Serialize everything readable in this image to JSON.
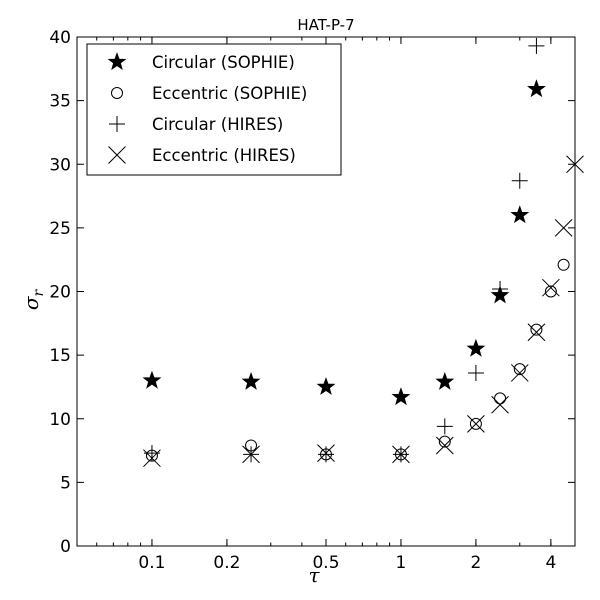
{
  "chart_data": {
    "type": "scatter",
    "title": "HAT-P-7",
    "xlabel": "τ",
    "ylabel_base": "σ",
    "ylabel_sub": "r",
    "x_scale": "log",
    "xlim": [
      0.05,
      5.0
    ],
    "ylim": [
      0,
      40
    ],
    "x_ticks": [
      0.1,
      0.2,
      0.5,
      1,
      2,
      4
    ],
    "x_tick_labels": [
      "0.1",
      "0.2",
      "0.5",
      "1",
      "2",
      "4"
    ],
    "y_ticks": [
      0,
      5,
      10,
      15,
      20,
      25,
      30,
      35,
      40
    ],
    "y_tick_labels": [
      "0",
      "5",
      "10",
      "15",
      "20",
      "25",
      "30",
      "35",
      "40"
    ],
    "legend_position": "upper-left",
    "grid": false,
    "series": [
      {
        "name": "Circular (SOPHIE)",
        "marker": "star",
        "points": [
          [
            0.1,
            13.0
          ],
          [
            0.25,
            12.9
          ],
          [
            0.5,
            12.5
          ],
          [
            1.0,
            11.7
          ],
          [
            1.5,
            12.9
          ],
          [
            2.0,
            15.5
          ],
          [
            2.5,
            19.7
          ],
          [
            3.0,
            26.0
          ],
          [
            3.5,
            35.9
          ]
        ]
      },
      {
        "name": "Eccentric (SOPHIE)",
        "marker": "circle",
        "points": [
          [
            0.1,
            7.1
          ],
          [
            0.25,
            7.9
          ],
          [
            0.5,
            7.2
          ],
          [
            1.0,
            7.2
          ],
          [
            1.5,
            8.2
          ],
          [
            2.0,
            9.6
          ],
          [
            2.5,
            11.6
          ],
          [
            3.0,
            13.9
          ],
          [
            3.5,
            17.0
          ],
          [
            4.0,
            20.0
          ],
          [
            4.5,
            22.1
          ]
        ]
      },
      {
        "name": "Circular (HIRES)",
        "marker": "plus",
        "points": [
          [
            0.1,
            7.3
          ],
          [
            0.25,
            7.2
          ],
          [
            0.5,
            7.2
          ],
          [
            1.0,
            7.2
          ],
          [
            1.5,
            9.4
          ],
          [
            2.0,
            13.6
          ],
          [
            2.5,
            20.2
          ],
          [
            3.0,
            28.7
          ],
          [
            3.5,
            39.3
          ]
        ]
      },
      {
        "name": "Eccentric (HIRES)",
        "marker": "x",
        "points": [
          [
            0.1,
            6.9
          ],
          [
            0.25,
            7.2
          ],
          [
            0.5,
            7.3
          ],
          [
            1.0,
            7.2
          ],
          [
            1.5,
            7.9
          ],
          [
            2.0,
            9.6
          ],
          [
            2.5,
            11.1
          ],
          [
            3.0,
            13.6
          ],
          [
            3.5,
            16.8
          ],
          [
            4.0,
            20.3
          ],
          [
            4.5,
            25.0
          ],
          [
            5.0,
            30.0
          ]
        ]
      }
    ]
  }
}
